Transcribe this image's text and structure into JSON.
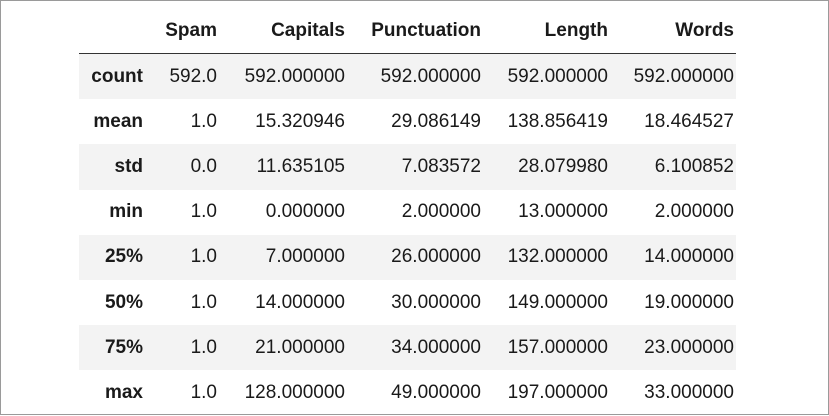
{
  "table": {
    "columns": [
      "Spam",
      "Capitals",
      "Punctuation",
      "Length",
      "Words"
    ],
    "rows": [
      {
        "label": "count",
        "values": [
          "592.0",
          "592.000000",
          "592.000000",
          "592.000000",
          "592.000000"
        ]
      },
      {
        "label": "mean",
        "values": [
          "1.0",
          "15.320946",
          "29.086149",
          "138.856419",
          "18.464527"
        ]
      },
      {
        "label": "std",
        "values": [
          "0.0",
          "11.635105",
          "7.083572",
          "28.079980",
          "6.100852"
        ]
      },
      {
        "label": "min",
        "values": [
          "1.0",
          "0.000000",
          "2.000000",
          "13.000000",
          "2.000000"
        ]
      },
      {
        "label": "25%",
        "values": [
          "1.0",
          "7.000000",
          "26.000000",
          "132.000000",
          "14.000000"
        ]
      },
      {
        "label": "50%",
        "values": [
          "1.0",
          "14.000000",
          "30.000000",
          "149.000000",
          "19.000000"
        ]
      },
      {
        "label": "75%",
        "values": [
          "1.0",
          "21.000000",
          "34.000000",
          "157.000000",
          "23.000000"
        ]
      },
      {
        "label": "max",
        "values": [
          "1.0",
          "128.000000",
          "49.000000",
          "197.000000",
          "33.000000"
        ]
      }
    ]
  }
}
